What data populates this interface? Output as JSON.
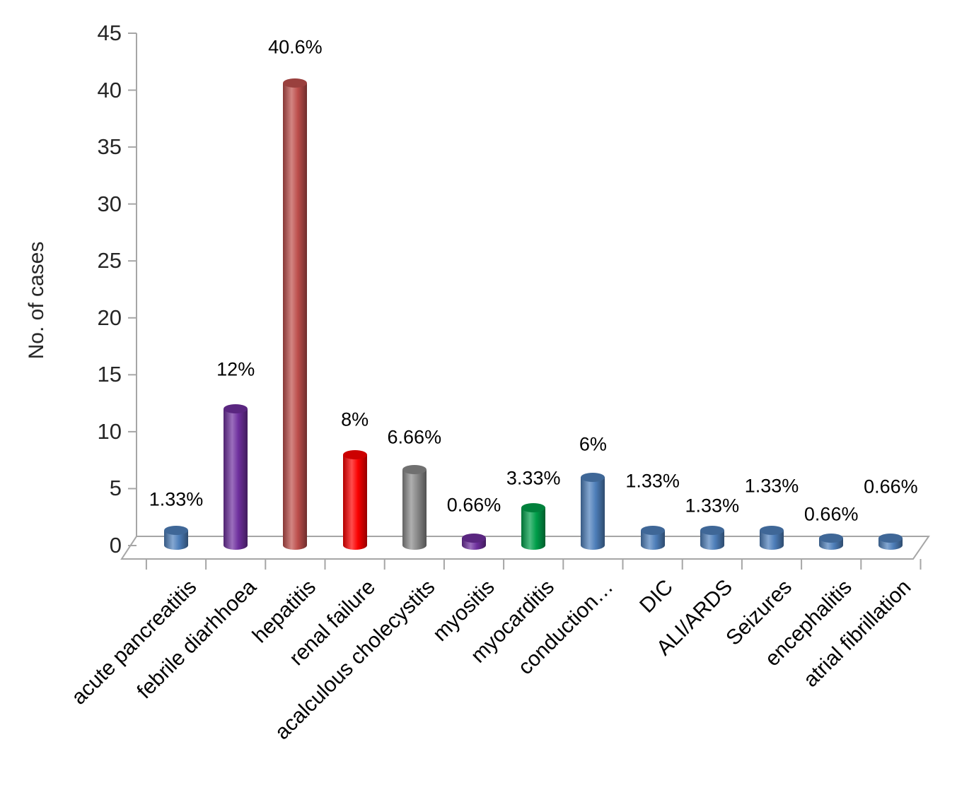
{
  "chart_data": {
    "type": "bar",
    "style": "3d-cylinder",
    "title": "",
    "xlabel": "",
    "ylabel": "No. of cases",
    "ylim": [
      0,
      45
    ],
    "ytick_step": 5,
    "yticks": [
      0,
      5,
      10,
      15,
      20,
      25,
      30,
      35,
      40,
      45
    ],
    "grid": "off",
    "legend": "none",
    "background": "#ffffff",
    "axis_color": "#a6a6a6",
    "text_color": "#262626",
    "categories": [
      "acute pancreatitis",
      "febrile diarhhoea",
      "hepatitis",
      "renal failure",
      "acalculous cholecystits",
      "myositis",
      "myocarditis",
      "conduction…",
      "DIC",
      "ALI/ARDS",
      "Seizures",
      "encephalitis",
      "atrial fibrillation"
    ],
    "values": [
      1.33,
      12,
      40.6,
      8,
      6.66,
      0.66,
      3.33,
      6,
      1.33,
      1.33,
      1.33,
      0.66,
      0.66
    ],
    "data_labels": [
      "1.33%",
      "12%",
      "40.6%",
      "8%",
      "6.66%",
      "0.66%",
      "3.33%",
      "6%",
      "1.33%",
      "1.33%",
      "1.33%",
      "0.66%",
      "0.66%"
    ],
    "bar_colors": [
      "#4f81bd",
      "#7030a0",
      "#c0504d",
      "#ff0000",
      "#8c8c8c",
      "#7030a0",
      "#00a14b",
      "#4f81bd",
      "#4f81bd",
      "#4f81bd",
      "#4f81bd",
      "#4f81bd",
      "#4f81bd"
    ],
    "label_offsets": [
      44,
      56,
      51,
      49,
      46,
      46,
      41,
      46,
      70,
      35,
      63,
      33,
      72
    ]
  }
}
